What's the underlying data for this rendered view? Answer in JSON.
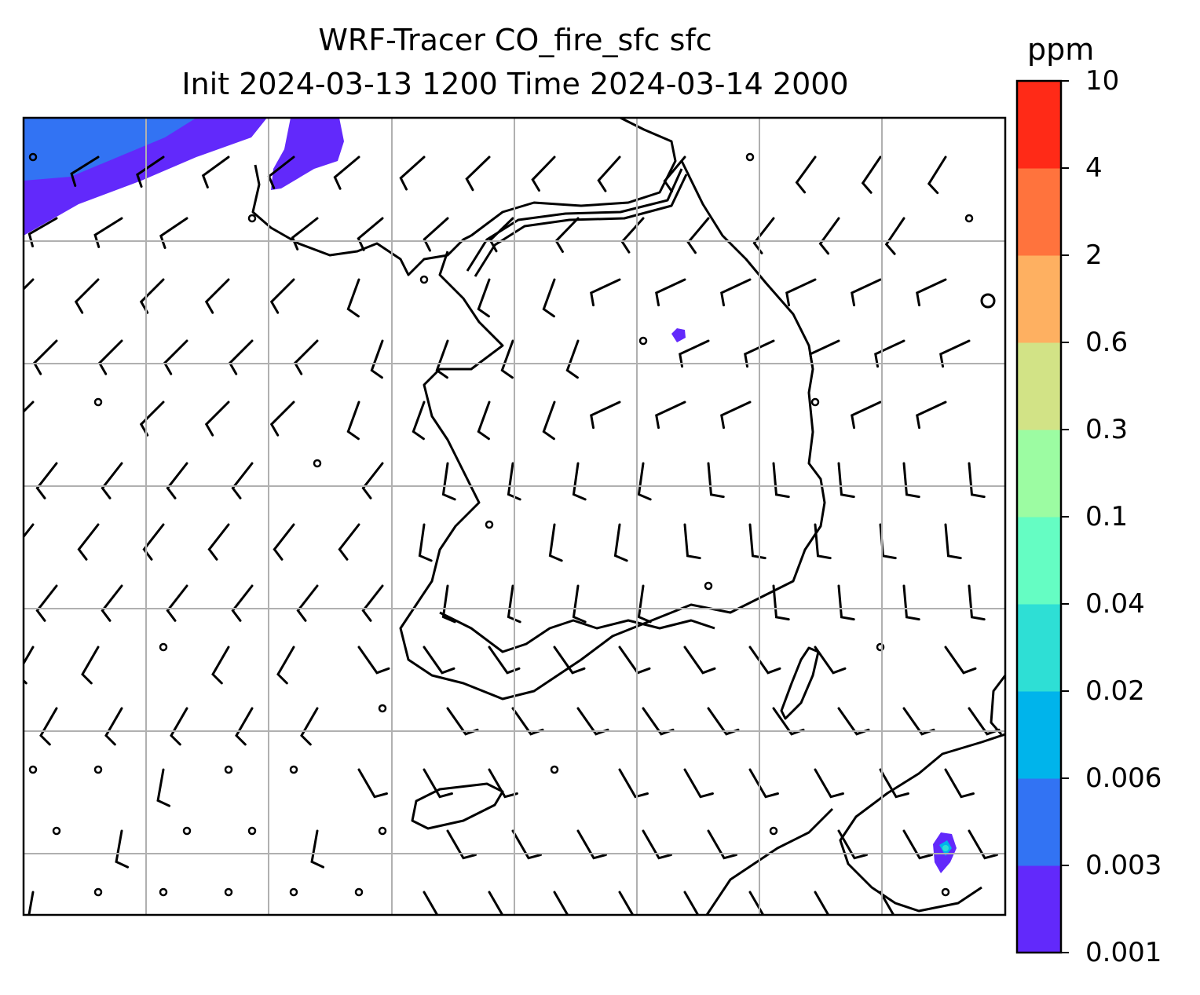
{
  "title": {
    "line1": "WRF-Tracer CO_fire_sfc sfc",
    "line2": "Init 2024-03-13 1200 Time 2024-03-14 2000"
  },
  "colorbar": {
    "unit": "ppm",
    "levels": [
      "0.001",
      "0.003",
      "0.006",
      "0.02",
      "0.04",
      "0.1",
      "0.3",
      "0.6",
      "2",
      "4",
      "10"
    ],
    "colors": [
      "#6229fb",
      "#3273f3",
      "#00b4eb",
      "#2edfd5",
      "#65fdc3",
      "#9cfca2",
      "#d2e386",
      "#feb061",
      "#ff733d",
      "#ff2a17"
    ]
  },
  "map": {
    "gridlines": "on",
    "coastlines": "black",
    "wind_barbs": "black",
    "calm_marker": "circle"
  }
}
